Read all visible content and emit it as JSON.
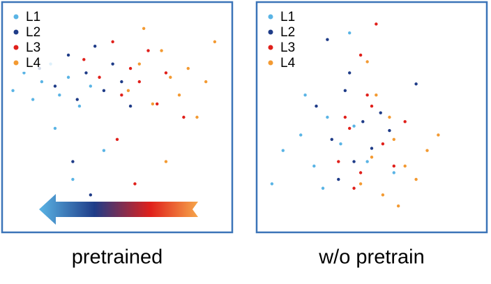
{
  "chart_data": [
    {
      "type": "scatter",
      "title": "pretrained",
      "legend": "upper left",
      "xlim": [
        0,
        100
      ],
      "ylim": [
        0,
        100
      ],
      "series": [
        {
          "name": "L1",
          "color": "#5ab4e5",
          "x": [
            3,
            8,
            12,
            16,
            20,
            24,
            28,
            33,
            38,
            30,
            44,
            22
          ],
          "y": [
            62,
            70,
            58,
            66,
            74,
            60,
            68,
            55,
            64,
            22,
            35,
            45
          ]
        },
        {
          "name": "L2",
          "color": "#1f3c88",
          "x": [
            15,
            22,
            28,
            32,
            36,
            40,
            44,
            48,
            52,
            30,
            56,
            38
          ],
          "y": [
            72,
            64,
            78,
            58,
            70,
            82,
            62,
            74,
            66,
            30,
            55,
            15
          ]
        },
        {
          "name": "L3",
          "color": "#e0201b",
          "x": [
            35,
            42,
            48,
            52,
            56,
            60,
            64,
            68,
            72,
            50,
            58,
            80
          ],
          "y": [
            76,
            68,
            84,
            60,
            72,
            66,
            80,
            56,
            70,
            40,
            20,
            50
          ]
        },
        {
          "name": "L4",
          "color": "#f39a32",
          "x": [
            55,
            60,
            66,
            70,
            74,
            78,
            82,
            86,
            90,
            94,
            72,
            62
          ],
          "y": [
            62,
            74,
            56,
            80,
            68,
            60,
            72,
            50,
            66,
            84,
            30,
            90
          ]
        }
      ]
    },
    {
      "type": "scatter",
      "title": "w/o pretrain",
      "legend": "upper left",
      "xlim": [
        0,
        100
      ],
      "ylim": [
        0,
        100
      ],
      "series": [
        {
          "name": "L1",
          "color": "#5ab4e5",
          "x": [
            5,
            10,
            18,
            24,
            30,
            36,
            42,
            48,
            28,
            20,
            60,
            40
          ],
          "y": [
            20,
            35,
            42,
            28,
            50,
            38,
            46,
            30,
            18,
            60,
            25,
            88
          ]
        },
        {
          "name": "L2",
          "color": "#1f3c88",
          "x": [
            25,
            32,
            38,
            42,
            46,
            50,
            54,
            40,
            35,
            58,
            70,
            30
          ],
          "y": [
            55,
            40,
            62,
            30,
            48,
            36,
            52,
            70,
            22,
            44,
            65,
            85
          ]
        },
        {
          "name": "L3",
          "color": "#e0201b",
          "x": [
            35,
            40,
            45,
            50,
            55,
            60,
            48,
            42,
            38,
            52,
            65,
            45
          ],
          "y": [
            30,
            45,
            25,
            55,
            38,
            28,
            60,
            18,
            50,
            92,
            48,
            78
          ]
        },
        {
          "name": "L4",
          "color": "#f39a32",
          "x": [
            45,
            50,
            55,
            60,
            65,
            70,
            58,
            52,
            75,
            48,
            62,
            80
          ],
          "y": [
            20,
            32,
            15,
            40,
            28,
            22,
            50,
            60,
            35,
            75,
            10,
            42
          ]
        }
      ]
    }
  ]
}
